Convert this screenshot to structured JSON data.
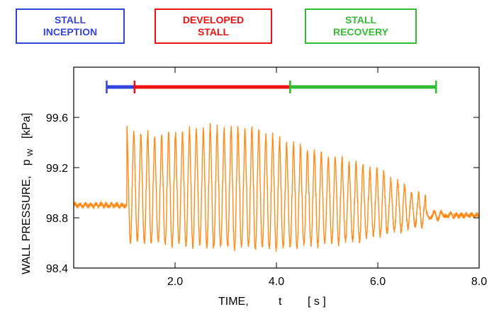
{
  "legend_boxes": [
    {
      "line1": "STALL",
      "line2": "INCEPTION",
      "color": "#3344dd"
    },
    {
      "line1": "DEVELOPED",
      "line2": "STALL",
      "color": "#ee1111"
    },
    {
      "line1": "STALL",
      "line2": "RECOVERY",
      "color": "#33bb33"
    }
  ],
  "chart_data": {
    "type": "line",
    "xlabel": {
      "name": "TIME,",
      "symbol": "t",
      "unit": "[ s ]"
    },
    "ylabel": {
      "name": "WALL  PRESSURE,",
      "symbol": "p",
      "subscript": "W",
      "unit": "[kPa]"
    },
    "xlim": [
      0,
      8.0
    ],
    "ylim": [
      98.4,
      100.0
    ],
    "x_ticks": [
      "2.0",
      "4.0",
      "6.0",
      "8.0"
    ],
    "y_ticks": [
      "98.4",
      "98.8",
      "99.2",
      "99.6"
    ],
    "grid": false,
    "series_color": "#ff8c1a",
    "stage_ranges": [
      {
        "label": "STALL INCEPTION",
        "start": 0.65,
        "end": 1.2,
        "color": "#3344dd"
      },
      {
        "label": "DEVELOPED STALL",
        "start": 1.2,
        "end": 4.27,
        "color": "#ee1111"
      },
      {
        "label": "STALL RECOVERY",
        "start": 4.27,
        "end": 7.15,
        "color": "#33bb33"
      }
    ],
    "signal": {
      "baseline": 98.88,
      "pre_stall_level": 98.9,
      "post_stall_level": 98.82,
      "stall_onset": 1.05,
      "stall_end": 6.95,
      "oscillation_frequency_hz": 7.3,
      "peaks": [
        [
          1.1,
          99.5
        ],
        [
          1.6,
          99.45
        ],
        [
          2.6,
          99.52
        ],
        [
          3.6,
          99.51
        ],
        [
          4.2,
          99.4
        ],
        [
          5.0,
          99.3
        ],
        [
          6.0,
          99.18
        ],
        [
          6.95,
          98.95
        ]
      ],
      "troughs": [
        [
          1.1,
          98.62
        ],
        [
          2.5,
          98.58
        ],
        [
          4.0,
          98.56
        ],
        [
          5.5,
          98.62
        ],
        [
          6.95,
          98.75
        ]
      ]
    }
  }
}
